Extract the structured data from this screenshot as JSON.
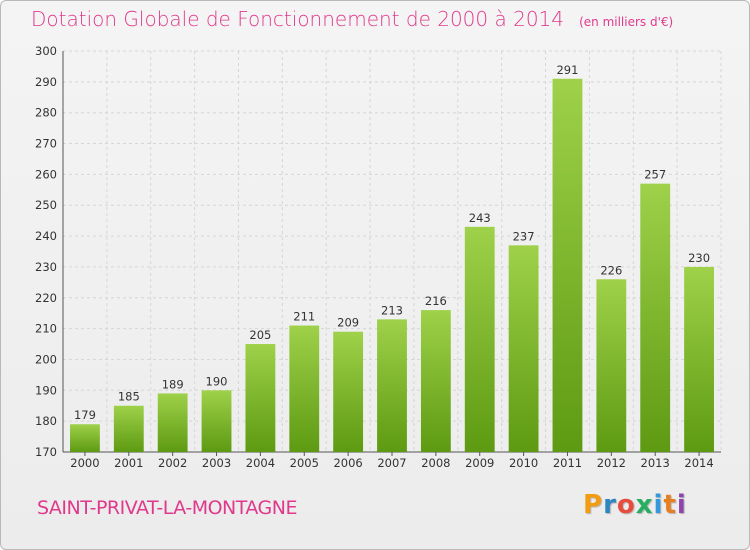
{
  "title": "Dotation Globale de Fonctionnement de 2000 à 2014",
  "unit": "(en milliers d'€)",
  "commune": "SAINT-PRIVAT-LA-MONTAGNE",
  "logo": {
    "letters": [
      "P",
      "r",
      "o",
      "x",
      "i",
      "t",
      "i"
    ],
    "colors": [
      "#f39c12",
      "#2e86c1",
      "#e74c3c",
      "#27ae60",
      "#3498db",
      "#e67e22",
      "#8e44ad"
    ]
  },
  "colors": {
    "accent": "#e0398c",
    "bar_top": "#9fd14a",
    "bar_bottom": "#5d9a12",
    "grid": "#d6d6d6"
  },
  "chart_data": {
    "type": "bar",
    "categories": [
      "2000",
      "2001",
      "2002",
      "2003",
      "2004",
      "2005",
      "2006",
      "2007",
      "2008",
      "2009",
      "2010",
      "2011",
      "2012",
      "2013",
      "2014"
    ],
    "values": [
      179,
      185,
      189,
      190,
      205,
      211,
      209,
      213,
      216,
      243,
      237,
      291,
      226,
      257,
      230
    ],
    "ylim": [
      170,
      300
    ],
    "yticks": [
      170,
      180,
      190,
      200,
      210,
      220,
      230,
      240,
      250,
      260,
      270,
      280,
      290,
      300
    ],
    "grid": true,
    "data_labels": true
  }
}
